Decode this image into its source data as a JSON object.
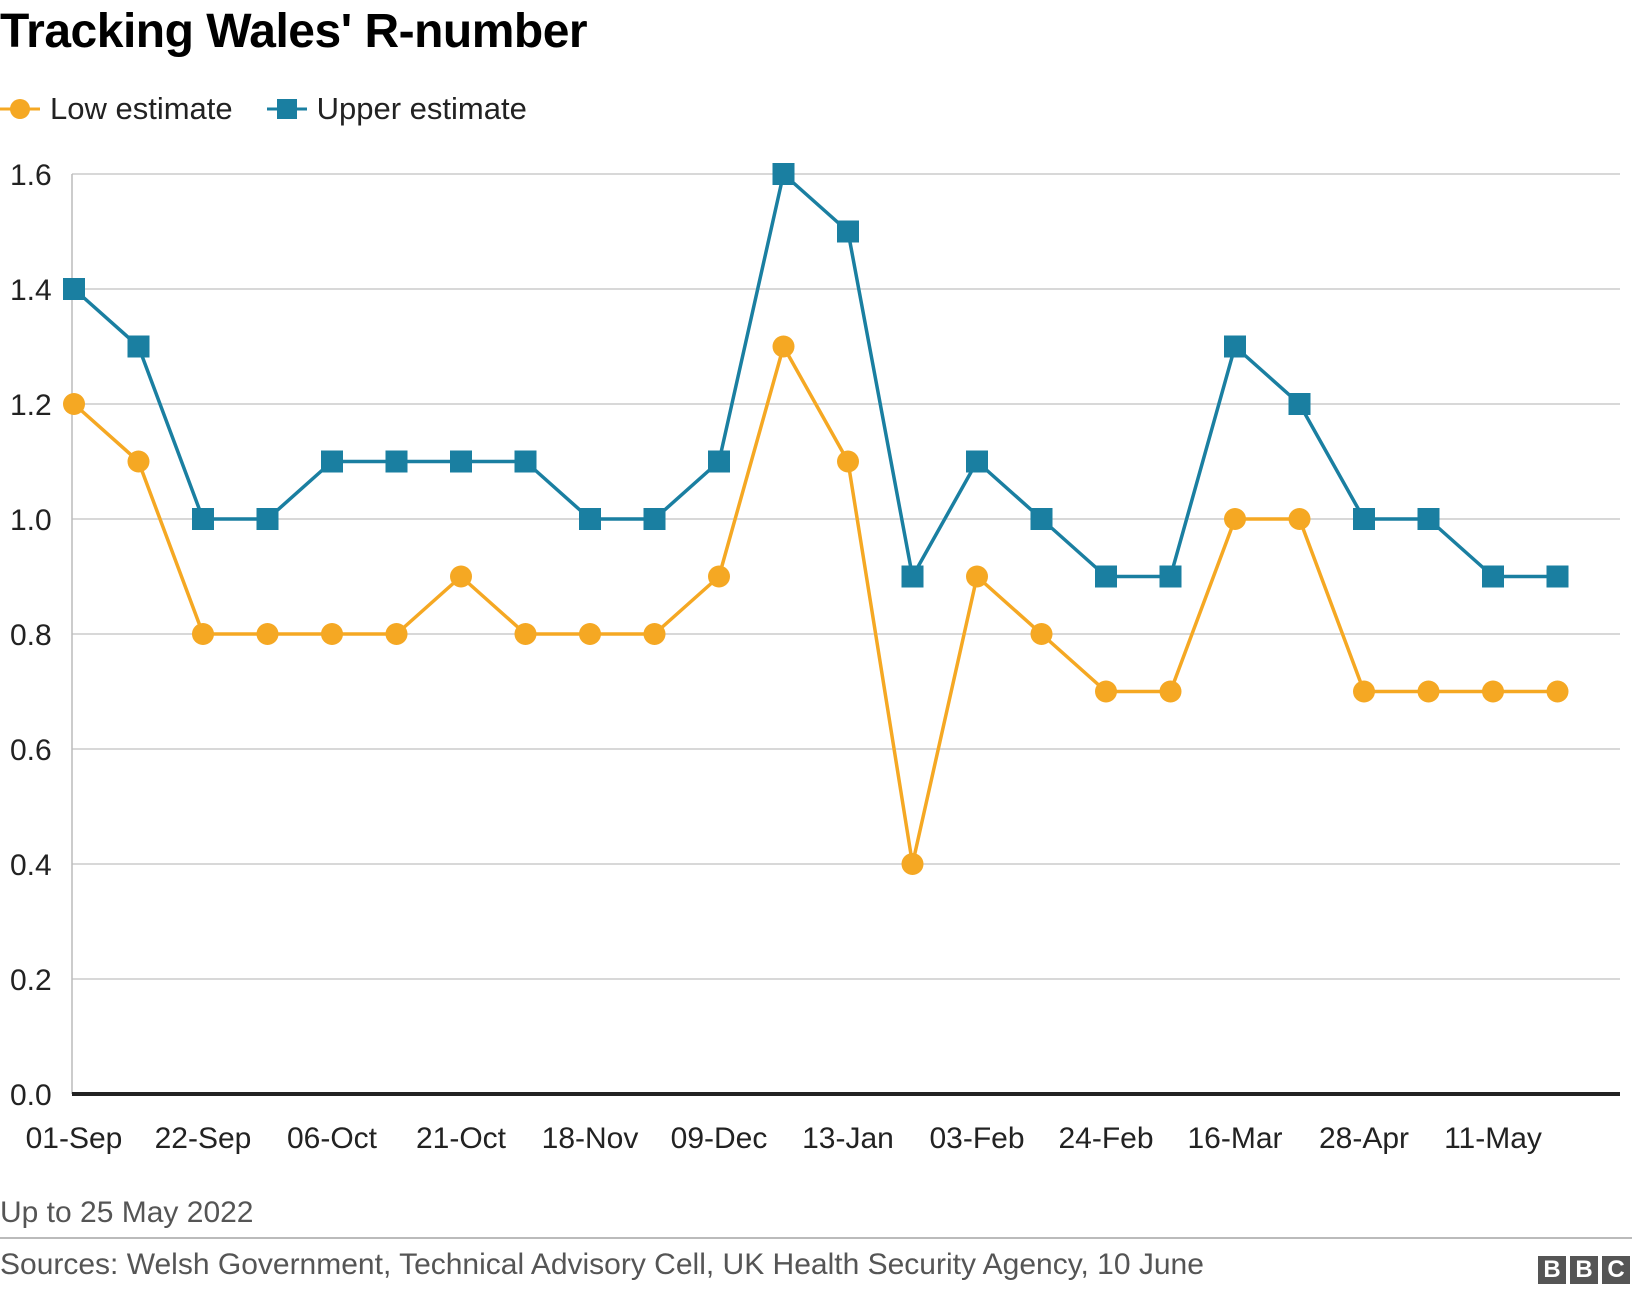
{
  "chart_data": {
    "type": "line",
    "title": "Tracking Wales' R-number",
    "categories": [
      "01-Sep",
      "",
      "22-Sep",
      "",
      "06-Oct",
      "",
      "21-Oct",
      "",
      "18-Nov",
      "",
      "09-Dec",
      "",
      "13-Jan",
      "",
      "03-Feb",
      "",
      "24-Feb",
      "",
      "16-Mar",
      "",
      "28-Apr",
      "",
      "11-May",
      ""
    ],
    "series": [
      {
        "name": "Low estimate",
        "color": "#f5a823",
        "marker": "circle",
        "values": [
          1.2,
          1.1,
          0.8,
          0.8,
          0.8,
          0.8,
          0.9,
          0.8,
          0.8,
          0.8,
          0.9,
          1.3,
          1.1,
          0.4,
          0.9,
          0.8,
          0.7,
          0.7,
          1.0,
          1.0,
          0.7,
          0.7,
          0.7,
          0.7
        ]
      },
      {
        "name": "Upper estimate",
        "color": "#1a7fa1",
        "marker": "square",
        "values": [
          1.4,
          1.3,
          1.0,
          1.0,
          1.1,
          1.1,
          1.1,
          1.1,
          1.0,
          1.0,
          1.1,
          1.6,
          1.5,
          0.9,
          1.1,
          1.0,
          0.9,
          0.9,
          1.3,
          1.2,
          1.0,
          1.0,
          0.9,
          0.9
        ]
      }
    ],
    "yticks": [
      "0.0",
      "0.2",
      "0.4",
      "0.6",
      "0.8",
      "1.0",
      "1.2",
      "1.4",
      "1.6"
    ],
    "ylim": [
      0,
      1.6
    ],
    "grid": true,
    "legend_position": "top-left"
  },
  "note": "Up to 25 May 2022",
  "source": "Sources: Welsh Government, Technical Advisory Cell, UK Health Security Agency, 10 June",
  "logo": [
    "B",
    "B",
    "C"
  ]
}
